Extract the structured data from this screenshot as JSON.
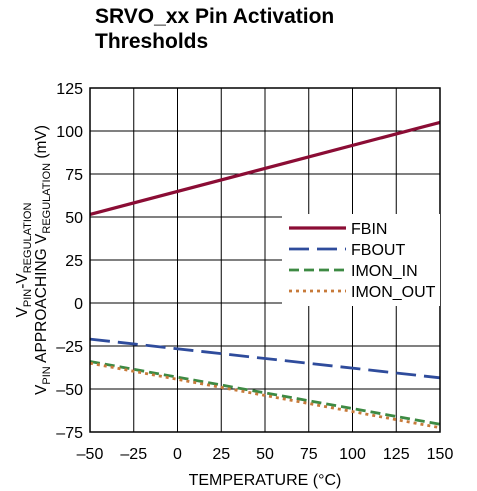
{
  "chart_data": {
    "type": "line",
    "title_lines": [
      "SRVO_xx Pin Activation",
      "Thresholds"
    ],
    "xlabel": "TEMPERATURE (°C)",
    "ylabel_lines": [
      [
        {
          "t": "V",
          "sub": false
        },
        {
          "t": "PIN",
          "sub": true
        },
        {
          "t": "-V",
          "sub": false
        },
        {
          "t": "REGULATION",
          "sub": true
        }
      ],
      [
        {
          "t": "V",
          "sub": false
        },
        {
          "t": "PIN",
          "sub": true
        },
        {
          "t": " APPROACHING V",
          "sub": false
        },
        {
          "t": "REGULATION",
          "sub": true
        },
        {
          "t": " (mV)",
          "sub": false
        }
      ]
    ],
    "xlim": [
      -50,
      150
    ],
    "ylim": [
      -75,
      125
    ],
    "xticks": [
      -50,
      -25,
      0,
      25,
      50,
      75,
      100,
      125,
      150
    ],
    "yticks": [
      -75,
      -50,
      -25,
      0,
      25,
      50,
      75,
      100,
      125
    ],
    "grid": true,
    "legend_position": "right-center",
    "series": [
      {
        "name": "FBIN",
        "color": "#8b0d35",
        "dash": "solid",
        "x": [
          -50,
          150
        ],
        "y": [
          51.5,
          105
        ]
      },
      {
        "name": "FBOUT",
        "color": "#2f4c9c",
        "dash": "long-dash",
        "x": [
          -50,
          150
        ],
        "y": [
          -21,
          -43.5
        ]
      },
      {
        "name": "IMON_IN",
        "color": "#3d8a43",
        "dash": "dash",
        "x": [
          -50,
          150
        ],
        "y": [
          -34,
          -70.5
        ]
      },
      {
        "name": "IMON_OUT",
        "color": "#c77a3a",
        "dash": "dot",
        "x": [
          -50,
          150
        ],
        "y": [
          -35,
          -72.5
        ]
      }
    ]
  }
}
